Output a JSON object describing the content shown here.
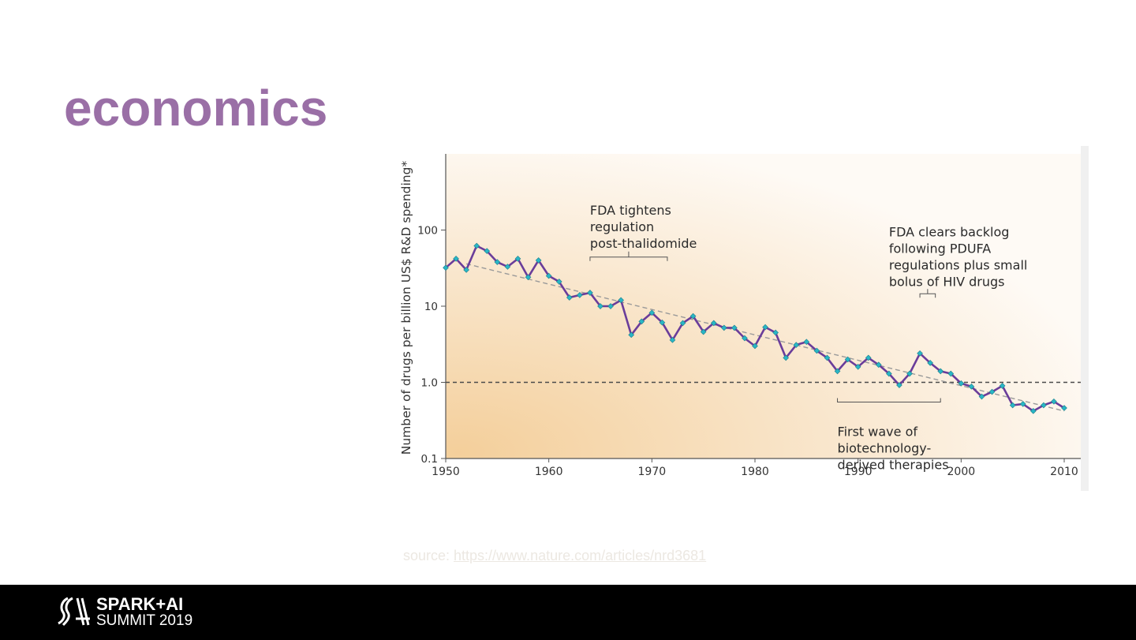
{
  "slide": {
    "title": "economics"
  },
  "source": {
    "prefix": "source: ",
    "link_text": "https://www.nature.com/articles/nrd3681"
  },
  "footer": {
    "logo_line1": "SPARK+AI",
    "logo_line2": "SUMMIT 2019"
  },
  "colors": {
    "title": "#9a6fa6",
    "line": "#6a3d9a",
    "marker": "#29b6c6",
    "trend": "#9a9a9a",
    "reference": "#4a4a4a"
  },
  "chart_data": {
    "type": "line",
    "ylabel": "Number of drugs per billion US$ R&D spending*",
    "xlabel": "",
    "x_ticks": [
      1950,
      1960,
      1970,
      1980,
      1990,
      2000,
      2010
    ],
    "y_ticks": [
      {
        "value": 100,
        "label": "100"
      },
      {
        "value": 10,
        "label": "10"
      },
      {
        "value": 1,
        "label": "1.0"
      },
      {
        "value": 0.1,
        "label": "0.1"
      }
    ],
    "xlim": [
      1950,
      2011
    ],
    "ylim": [
      0.1,
      1000
    ],
    "y_scale": "log",
    "grid": false,
    "series": [
      {
        "x": [
          1950,
          1951,
          1952,
          1953,
          1954,
          1955,
          1956,
          1957,
          1958,
          1959,
          1960,
          1961,
          1962,
          1963,
          1964,
          1965,
          1966,
          1967,
          1968,
          1969,
          1970,
          1971,
          1972,
          1973,
          1974,
          1975,
          1976,
          1977,
          1978,
          1979,
          1980,
          1981,
          1982,
          1983,
          1984,
          1985,
          1986,
          1987,
          1988,
          1989,
          1990,
          1991,
          1992,
          1993,
          1994,
          1995,
          1996,
          1997,
          1998,
          1999,
          2000,
          2001,
          2002,
          2003,
          2004,
          2005,
          2006,
          2007,
          2008,
          2009,
          2010
        ],
        "values": [
          32,
          42,
          30,
          62,
          53,
          38,
          33,
          42,
          24,
          40,
          25,
          21,
          13,
          14,
          15,
          10,
          10,
          12,
          4.2,
          6.3,
          8.2,
          6.1,
          3.6,
          6,
          7.4,
          4.6,
          6,
          5.2,
          5.2,
          3.8,
          3,
          5.3,
          4.5,
          2.1,
          3.1,
          3.4,
          2.6,
          2.1,
          1.4,
          2,
          1.6,
          2.1,
          1.7,
          1.3,
          0.92,
          1.3,
          2.4,
          1.8,
          1.4,
          1.3,
          0.97,
          0.88,
          0.65,
          0.75,
          0.9,
          0.5,
          0.52,
          0.42,
          0.5,
          0.56,
          0.46
        ]
      }
    ],
    "trend_line": {
      "x": [
        1952,
        2010
      ],
      "values": [
        36,
        0.42
      ]
    },
    "reference_line": {
      "value": 1
    },
    "annotations": [
      {
        "lines": [
          "FDA tightens",
          "regulation",
          "post-thalidomide"
        ],
        "bracket_x": [
          1964,
          1971.5
        ],
        "anchor_x": 1964,
        "anchor_y": 160
      },
      {
        "lines": [
          "FDA clears backlog",
          "following PDUFA",
          "regulations plus small",
          "bolus of HIV drugs"
        ],
        "bracket_x": [
          1996,
          1997.5
        ],
        "anchor_x": 1993,
        "anchor_y": 83
      },
      {
        "lines": [
          "First wave of",
          "biotechnology-",
          "derived therapies"
        ],
        "bracket_x": [
          1988,
          1998
        ],
        "anchor_x": 1988,
        "anchor_y": 0.22
      }
    ]
  }
}
